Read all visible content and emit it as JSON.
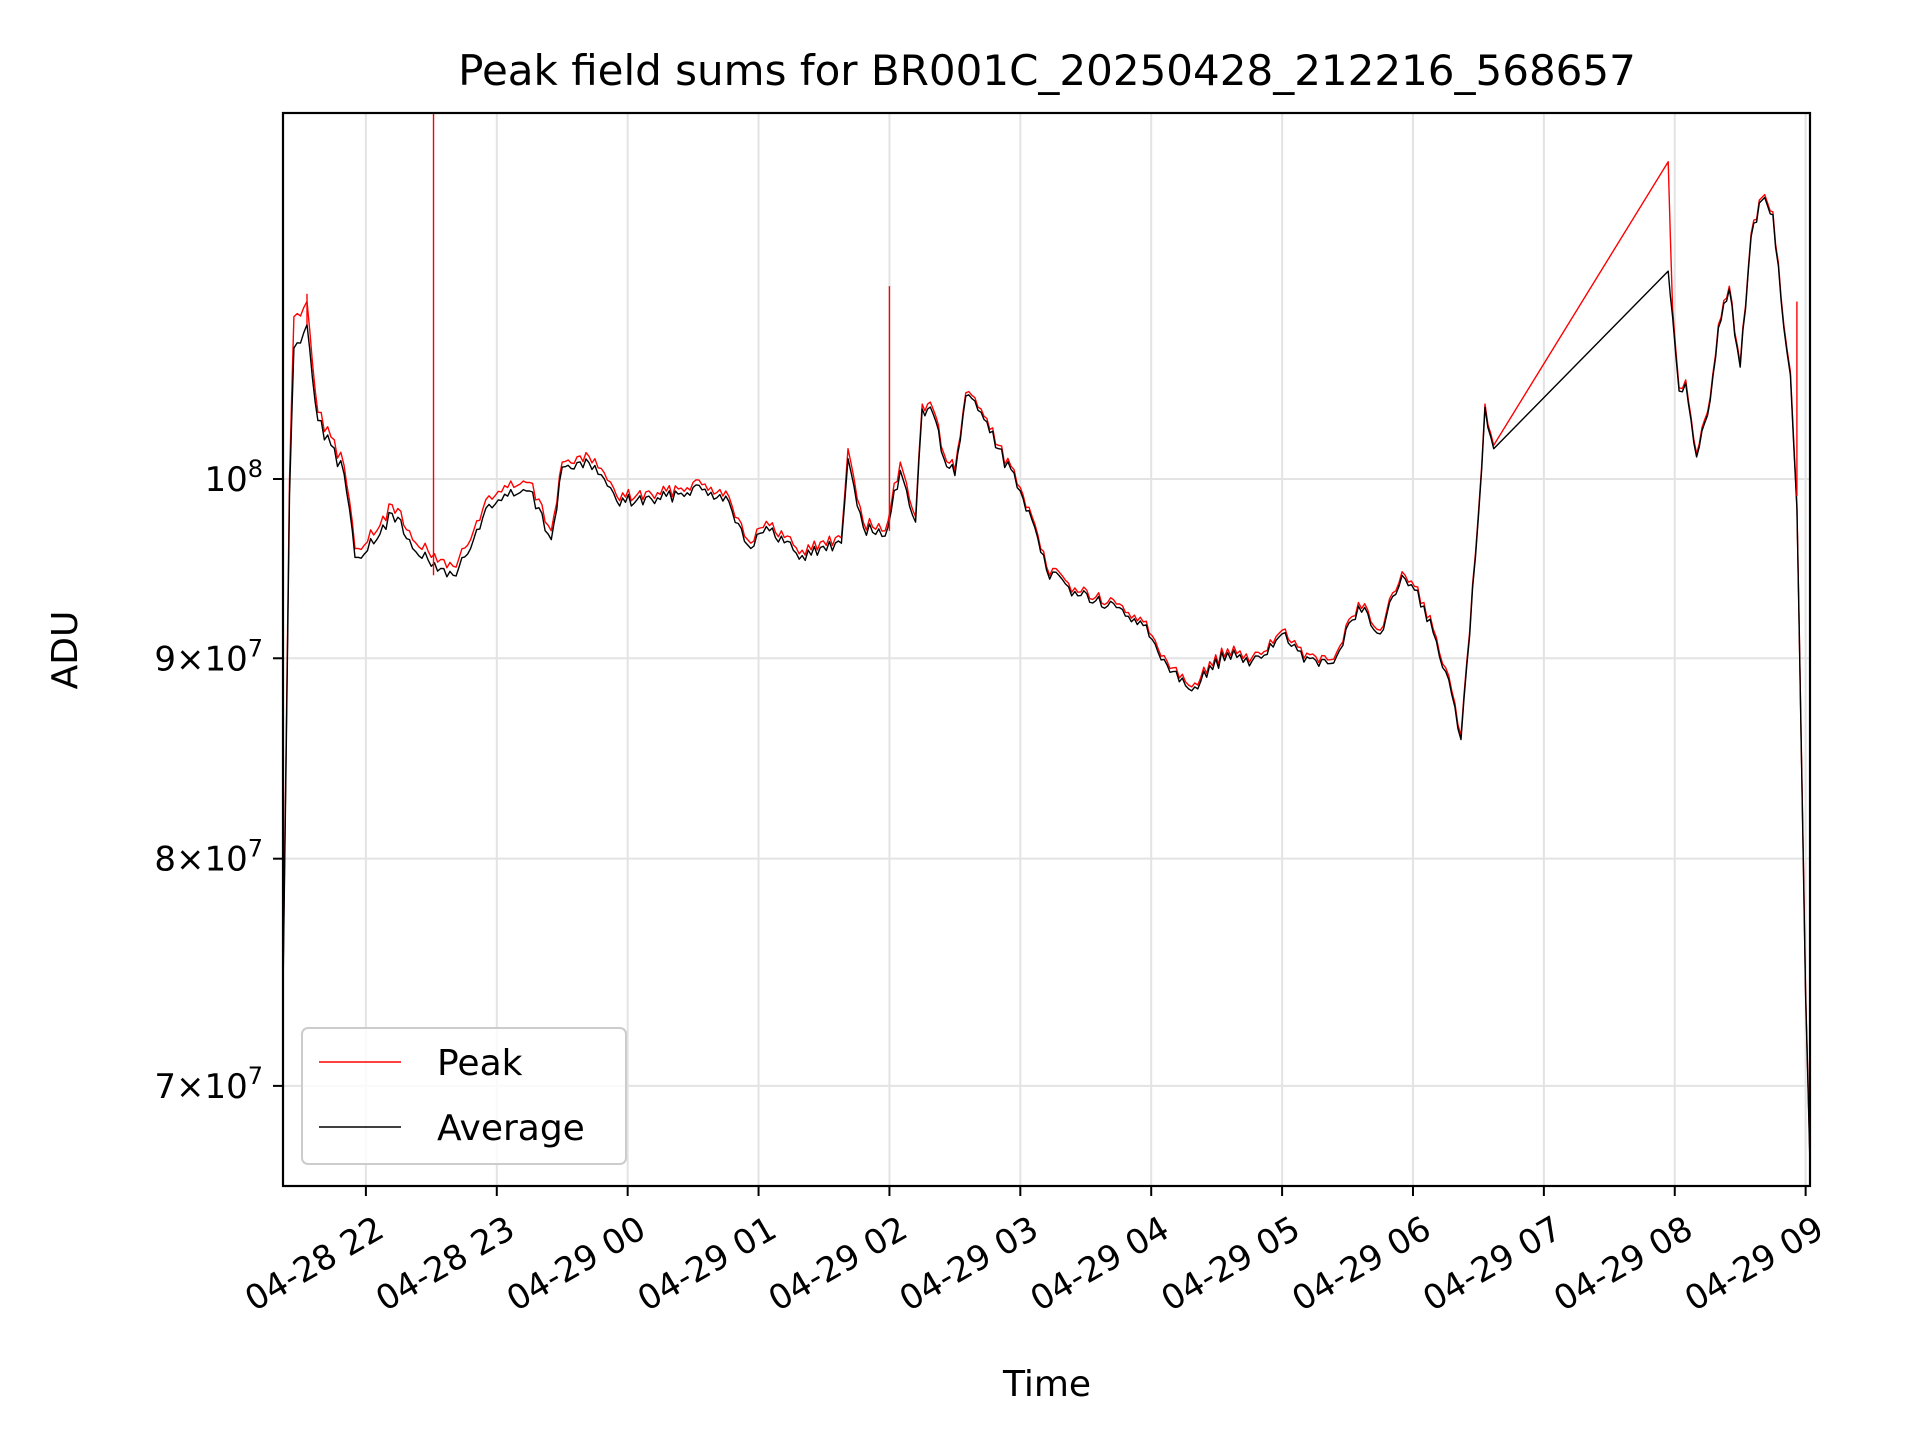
{
  "chart_data": {
    "type": "line",
    "title": "Peak field sums for BR001C_20250428_212216_568657",
    "xlabel": "Time",
    "ylabel": "ADU",
    "yscale": "log",
    "grid": true,
    "legend_placement": "lower-left",
    "xlim": [
      "2025-04-28 21:22",
      "2025-04-29 09:02"
    ],
    "ylim": [
      66000000,
      124000000
    ],
    "x_ticks": [
      {
        "t": "2025-04-28 22:00",
        "label": "04-28 22"
      },
      {
        "t": "2025-04-28 23:00",
        "label": "04-28 23"
      },
      {
        "t": "2025-04-29 00:00",
        "label": "04-29 00"
      },
      {
        "t": "2025-04-29 01:00",
        "label": "04-29 01"
      },
      {
        "t": "2025-04-29 02:00",
        "label": "04-29 02"
      },
      {
        "t": "2025-04-29 03:00",
        "label": "04-29 03"
      },
      {
        "t": "2025-04-29 04:00",
        "label": "04-29 04"
      },
      {
        "t": "2025-04-29 05:00",
        "label": "04-29 05"
      },
      {
        "t": "2025-04-29 06:00",
        "label": "04-29 06"
      },
      {
        "t": "2025-04-29 07:00",
        "label": "04-29 07"
      },
      {
        "t": "2025-04-29 08:00",
        "label": "04-29 08"
      },
      {
        "t": "2025-04-29 09:00",
        "label": "04-29 09"
      }
    ],
    "y_ticks": [
      {
        "v": 70000000,
        "mant": "7",
        "exp": "7"
      },
      {
        "v": 80000000,
        "mant": "8",
        "exp": "7"
      },
      {
        "v": 90000000,
        "mant": "9",
        "exp": "7"
      },
      {
        "v": 100000000,
        "mant": "",
        "exp": "8"
      }
    ],
    "series": [
      {
        "name": "Peak",
        "color": "#ff0000",
        "points": [
          [
            "2025-04-28 21:22",
            74500000
          ],
          [
            "2025-04-28 21:25",
            100000000
          ],
          [
            "2025-04-28 21:27",
            110000000
          ],
          [
            "2025-04-28 21:33",
            111000000
          ],
          [
            "2025-04-28 21:38",
            104000000
          ],
          [
            "2025-04-28 21:44",
            102500000
          ],
          [
            "2025-04-28 21:50",
            100800000
          ],
          [
            "2025-04-28 21:55",
            96000000
          ],
          [
            "2025-04-28 22:05",
            97000000
          ],
          [
            "2025-04-28 22:12",
            98500000
          ],
          [
            "2025-04-28 22:20",
            97000000
          ],
          [
            "2025-04-28 22:30",
            95500000
          ],
          [
            "2025-04-28 22:40",
            95000000
          ],
          [
            "2025-04-28 22:48",
            96500000
          ],
          [
            "2025-04-28 22:55",
            98800000
          ],
          [
            "2025-04-28 23:05",
            99500000
          ],
          [
            "2025-04-28 23:15",
            99800000
          ],
          [
            "2025-04-28 23:25",
            97000000
          ],
          [
            "2025-04-28 23:30",
            101000000
          ],
          [
            "2025-04-28 23:45",
            101200000
          ],
          [
            "2025-04-28 23:55",
            99000000
          ],
          [
            "2025-04-29 00:15",
            99100000
          ],
          [
            "2025-04-29 00:30",
            99800000
          ],
          [
            "2025-04-29 00:45",
            99300000
          ],
          [
            "2025-04-29 00:55",
            96500000
          ],
          [
            "2025-04-29 01:05",
            97300000
          ],
          [
            "2025-04-29 01:20",
            95900000
          ],
          [
            "2025-04-29 01:38",
            96600000
          ],
          [
            "2025-04-29 01:41",
            101800000
          ],
          [
            "2025-04-29 01:48",
            97500000
          ],
          [
            "2025-04-29 01:58",
            97000000
          ],
          [
            "2025-04-29 02:05",
            101000000
          ],
          [
            "2025-04-29 02:12",
            97800000
          ],
          [
            "2025-04-29 02:15",
            104500000
          ],
          [
            "2025-04-29 02:20",
            104200000
          ],
          [
            "2025-04-29 02:25",
            101500000
          ],
          [
            "2025-04-29 02:30",
            100500000
          ],
          [
            "2025-04-29 02:35",
            105200000
          ],
          [
            "2025-04-29 02:42",
            104200000
          ],
          [
            "2025-04-29 02:50",
            102000000
          ],
          [
            "2025-04-29 03:00",
            99500000
          ],
          [
            "2025-04-29 03:12",
            95000000
          ],
          [
            "2025-04-29 03:25",
            93800000
          ],
          [
            "2025-04-29 03:40",
            93000000
          ],
          [
            "2025-04-29 03:55",
            92200000
          ],
          [
            "2025-04-29 04:10",
            89500000
          ],
          [
            "2025-04-29 04:20",
            88700000
          ],
          [
            "2025-04-29 04:35",
            90500000
          ],
          [
            "2025-04-29 04:45",
            89800000
          ],
          [
            "2025-04-29 05:00",
            91500000
          ],
          [
            "2025-04-29 05:10",
            90000000
          ],
          [
            "2025-04-29 05:25",
            90300000
          ],
          [
            "2025-04-29 05:35",
            93000000
          ],
          [
            "2025-04-29 05:45",
            91500000
          ],
          [
            "2025-04-29 05:55",
            94700000
          ],
          [
            "2025-04-29 06:05",
            93000000
          ],
          [
            "2025-04-29 06:15",
            89500000
          ],
          [
            "2025-04-29 06:22",
            86000000
          ],
          [
            "2025-04-29 06:30",
            98000000
          ],
          [
            "2025-04-29 06:33",
            104500000
          ],
          [
            "2025-04-29 06:37",
            102000000
          ],
          [
            "2025-04-29 07:57",
            120500000
          ],
          [
            "2025-04-29 07:59",
            110500000
          ],
          [
            "2025-04-29 08:02",
            105500000
          ],
          [
            "2025-04-29 08:05",
            106000000
          ],
          [
            "2025-04-29 08:10",
            101500000
          ],
          [
            "2025-04-29 08:15",
            104000000
          ],
          [
            "2025-04-29 08:20",
            109500000
          ],
          [
            "2025-04-29 08:25",
            112000000
          ],
          [
            "2025-04-29 08:30",
            107000000
          ],
          [
            "2025-04-29 08:35",
            115500000
          ],
          [
            "2025-04-29 08:40",
            118000000
          ],
          [
            "2025-04-29 08:45",
            117000000
          ],
          [
            "2025-04-29 08:50",
            109500000
          ],
          [
            "2025-04-29 08:53",
            106500000
          ],
          [
            "2025-04-29 08:56",
            98500000
          ],
          [
            "2025-04-29 08:58",
            85500000
          ],
          [
            "2025-04-29 09:00",
            74000000
          ],
          [
            "2025-04-29 09:02",
            67000000
          ]
        ]
      },
      {
        "name": "Average",
        "color": "#000000",
        "points": [
          [
            "2025-04-28 21:22",
            74000000
          ],
          [
            "2025-04-28 21:25",
            99000000
          ],
          [
            "2025-04-28 21:27",
            108000000
          ],
          [
            "2025-04-28 21:33",
            109500000
          ],
          [
            "2025-04-28 21:38",
            103500000
          ],
          [
            "2025-04-28 21:44",
            102000000
          ],
          [
            "2025-04-28 21:50",
            100300000
          ],
          [
            "2025-04-28 21:55",
            95500000
          ],
          [
            "2025-04-28 22:05",
            96500000
          ],
          [
            "2025-04-28 22:12",
            98000000
          ],
          [
            "2025-04-28 22:20",
            96500000
          ],
          [
            "2025-04-28 22:30",
            95000000
          ],
          [
            "2025-04-28 22:40",
            94500000
          ],
          [
            "2025-04-28 22:48",
            96000000
          ],
          [
            "2025-04-28 22:55",
            98300000
          ],
          [
            "2025-04-28 23:05",
            99000000
          ],
          [
            "2025-04-28 23:15",
            99300000
          ],
          [
            "2025-04-28 23:25",
            96500000
          ],
          [
            "2025-04-28 23:30",
            100700000
          ],
          [
            "2025-04-28 23:45",
            100800000
          ],
          [
            "2025-04-28 23:55",
            98700000
          ],
          [
            "2025-04-29 00:15",
            98800000
          ],
          [
            "2025-04-29 00:30",
            99500000
          ],
          [
            "2025-04-29 00:45",
            99000000
          ],
          [
            "2025-04-29 00:55",
            96200000
          ],
          [
            "2025-04-29 01:05",
            97000000
          ],
          [
            "2025-04-29 01:20",
            95600000
          ],
          [
            "2025-04-29 01:38",
            96300000
          ],
          [
            "2025-04-29 01:41",
            101200000
          ],
          [
            "2025-04-29 01:48",
            97200000
          ],
          [
            "2025-04-29 01:58",
            96700000
          ],
          [
            "2025-04-29 02:05",
            100500000
          ],
          [
            "2025-04-29 02:12",
            97500000
          ],
          [
            "2025-04-29 02:15",
            104200000
          ],
          [
            "2025-04-29 02:20",
            103900000
          ],
          [
            "2025-04-29 02:25",
            101200000
          ],
          [
            "2025-04-29 02:30",
            100200000
          ],
          [
            "2025-04-29 02:35",
            105000000
          ],
          [
            "2025-04-29 02:42",
            104000000
          ],
          [
            "2025-04-29 02:50",
            101800000
          ],
          [
            "2025-04-29 03:00",
            99300000
          ],
          [
            "2025-04-29 03:12",
            94800000
          ],
          [
            "2025-04-29 03:25",
            93600000
          ],
          [
            "2025-04-29 03:40",
            92800000
          ],
          [
            "2025-04-29 03:55",
            92000000
          ],
          [
            "2025-04-29 04:10",
            89300000
          ],
          [
            "2025-04-29 04:20",
            88500000
          ],
          [
            "2025-04-29 04:35",
            90300000
          ],
          [
            "2025-04-29 04:45",
            89600000
          ],
          [
            "2025-04-29 05:00",
            91300000
          ],
          [
            "2025-04-29 05:10",
            89800000
          ],
          [
            "2025-04-29 05:25",
            90100000
          ],
          [
            "2025-04-29 05:35",
            92800000
          ],
          [
            "2025-04-29 05:45",
            91300000
          ],
          [
            "2025-04-29 05:55",
            94500000
          ],
          [
            "2025-04-29 06:05",
            92800000
          ],
          [
            "2025-04-29 06:15",
            89300000
          ],
          [
            "2025-04-29 06:22",
            85800000
          ],
          [
            "2025-04-29 06:30",
            97800000
          ],
          [
            "2025-04-29 06:33",
            104300000
          ],
          [
            "2025-04-29 06:37",
            101800000
          ],
          [
            "2025-04-29 07:57",
            113000000
          ],
          [
            "2025-04-29 07:59",
            110000000
          ],
          [
            "2025-04-29 08:02",
            105300000
          ],
          [
            "2025-04-29 08:05",
            105800000
          ],
          [
            "2025-04-29 08:10",
            101300000
          ],
          [
            "2025-04-29 08:15",
            103800000
          ],
          [
            "2025-04-29 08:20",
            109300000
          ],
          [
            "2025-04-29 08:25",
            111800000
          ],
          [
            "2025-04-29 08:30",
            106800000
          ],
          [
            "2025-04-29 08:35",
            115300000
          ],
          [
            "2025-04-29 08:40",
            117800000
          ],
          [
            "2025-04-29 08:45",
            116800000
          ],
          [
            "2025-04-29 08:50",
            109300000
          ],
          [
            "2025-04-29 08:53",
            106300000
          ],
          [
            "2025-04-29 08:56",
            98300000
          ],
          [
            "2025-04-29 08:58",
            85300000
          ],
          [
            "2025-04-29 09:00",
            73800000
          ],
          [
            "2025-04-29 09:02",
            66800000
          ]
        ]
      }
    ],
    "spikes": [
      {
        "series": "Peak",
        "t": "2025-04-28 22:31",
        "base": 94500000,
        "top": 124000000
      },
      {
        "series": "Peak",
        "t": "2025-04-29 02:00",
        "base": 97000000,
        "top": 112000000
      },
      {
        "series": "Peak",
        "t": "2025-04-29 08:56",
        "base": 99000000,
        "top": 111000000
      },
      {
        "series": "Peak",
        "t": "2025-04-28 21:33",
        "base": 109500000,
        "top": 111500000
      }
    ]
  }
}
